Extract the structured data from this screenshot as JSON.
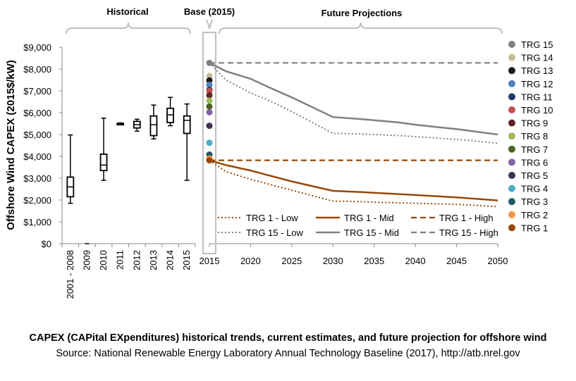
{
  "caption": {
    "title": "CAPEX (CAPital EXpenditures) historical trends, current estimates, and future projection for offshore wind",
    "source": "Source: National Renewable Energy Laboratory Annual Technology Baseline (2017), http://atb.nrel.gov"
  },
  "chart_data": {
    "type": "line",
    "ylabel": "Offshore Wind CAPEX (2015$/kW)",
    "ylim": [
      0,
      9000
    ],
    "yticks": [
      "$0",
      "$1,000",
      "$2,000",
      "$3,000",
      "$4,000",
      "$5,000",
      "$6,000",
      "$7,000",
      "$8,000",
      "$9,000"
    ],
    "grid": false,
    "sections": {
      "historical": "Historical",
      "base": "Base (2015)",
      "future": "Future Projections"
    },
    "historical": {
      "categories": [
        "2001 - 2008",
        "2009",
        "2010",
        "2011",
        "2012",
        "2013",
        "2014",
        "2015"
      ],
      "boxes": [
        {
          "min": 1850,
          "q1": 2150,
          "median": 2600,
          "q3": 3050,
          "max": 4980
        },
        {
          "min": 0,
          "q1": 0,
          "median": 0,
          "q3": 0,
          "max": 0
        },
        {
          "min": 2900,
          "q1": 3350,
          "median": 3600,
          "q3": 4100,
          "max": 5750
        },
        {
          "min": 5470,
          "q1": 5490,
          "median": 5500,
          "q3": 5510,
          "max": 5530
        },
        {
          "min": 5150,
          "q1": 5300,
          "median": 5450,
          "q3": 5600,
          "max": 5700
        },
        {
          "min": 4800,
          "q1": 4950,
          "median": 5450,
          "q3": 5850,
          "max": 6350
        },
        {
          "min": 5400,
          "q1": 5550,
          "median": 5900,
          "q3": 6200,
          "max": 6700
        },
        {
          "min": 2900,
          "q1": 5050,
          "median": 5650,
          "q3": 5850,
          "max": 6400
        }
      ]
    },
    "base_year": "2015",
    "base_points": [
      {
        "name": "TRG 15",
        "value": 8280,
        "color": "#808080"
      },
      {
        "name": "TRG 14",
        "value": 7680,
        "color": "#c4bd97"
      },
      {
        "name": "TRG 13",
        "value": 7480,
        "color": "#1a1a1a"
      },
      {
        "name": "TRG 12",
        "value": 7280,
        "color": "#4f81bd"
      },
      {
        "name": "TRG 11",
        "value": 7050,
        "color": "#1f3864"
      },
      {
        "name": "TRG 10",
        "value": 7000,
        "color": "#c0504d"
      },
      {
        "name": "TRG 9",
        "value": 6800,
        "color": "#632523"
      },
      {
        "name": "TRG 8",
        "value": 6550,
        "color": "#9bbb59"
      },
      {
        "name": "TRG 7",
        "value": 6280,
        "color": "#4f6228"
      },
      {
        "name": "TRG 6",
        "value": 6020,
        "color": "#8064a2"
      },
      {
        "name": "TRG 5",
        "value": 5400,
        "color": "#3f3151"
      },
      {
        "name": "TRG 4",
        "value": 4620,
        "color": "#4bacc6"
      },
      {
        "name": "TRG 3",
        "value": 4080,
        "color": "#215868"
      },
      {
        "name": "TRG 2",
        "value": 3900,
        "color": "#f79646"
      },
      {
        "name": "TRG 1",
        "value": 3820,
        "color": "#974806"
      }
    ],
    "future_x_ticks": [
      "2015",
      "2020",
      "2025",
      "2030",
      "2035",
      "2040",
      "2045",
      "2050"
    ],
    "x": [
      2015,
      2017,
      2020,
      2022,
      2025,
      2030,
      2033,
      2035,
      2038,
      2040,
      2045,
      2050
    ],
    "series": [
      {
        "name": "TRG 1 - Low",
        "color": "#974806",
        "dash": "dotted",
        "values": [
          3820,
          3300,
          2950,
          2750,
          2450,
          1950,
          1930,
          1900,
          1870,
          1850,
          1800,
          1700
        ]
      },
      {
        "name": "TRG 1 - Mid",
        "color": "#974806",
        "dash": "solid",
        "values": [
          3820,
          3600,
          3350,
          3150,
          2850,
          2420,
          2370,
          2330,
          2270,
          2230,
          2120,
          1980
        ]
      },
      {
        "name": "TRG 1 - High",
        "color": "#974806",
        "dash": "dashed",
        "values": [
          3820,
          3820,
          3820,
          3820,
          3820,
          3820,
          3820,
          3820,
          3820,
          3820,
          3820,
          3820
        ]
      },
      {
        "name": "TRG 15 - Low",
        "color": "#808080",
        "dash": "dotted",
        "values": [
          8280,
          7500,
          6900,
          6600,
          6050,
          5050,
          5030,
          5000,
          4950,
          4900,
          4780,
          4600
        ]
      },
      {
        "name": "TRG 15 - Mid",
        "color": "#808080",
        "dash": "solid",
        "values": [
          8280,
          7900,
          7550,
          7200,
          6700,
          5800,
          5720,
          5650,
          5550,
          5450,
          5250,
          5000
        ]
      },
      {
        "name": "TRG 15 - High",
        "color": "#808080",
        "dash": "dashed",
        "values": [
          8280,
          8280,
          8280,
          8280,
          8280,
          8280,
          8280,
          8280,
          8280,
          8280,
          8280,
          8280
        ]
      }
    ],
    "legend_placement": "bottom"
  }
}
